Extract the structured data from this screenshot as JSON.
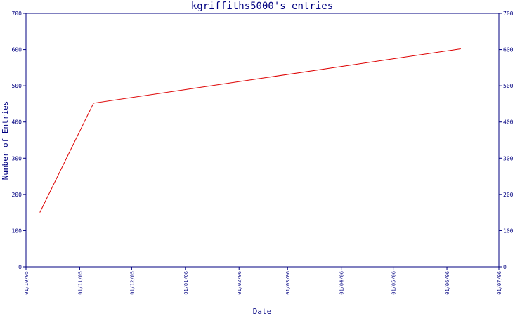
{
  "chart_data": {
    "type": "line",
    "title": "kgriffiths5000's entries",
    "xlabel": "Date",
    "ylabel": "Number of Entries",
    "ylim": [
      0,
      700
    ],
    "yticks": [
      0,
      100,
      200,
      300,
      400,
      500,
      600,
      700
    ],
    "xlim": [
      "2005-10-01",
      "2006-07-01"
    ],
    "xticks": [
      {
        "date": "2005-10-01",
        "label": "01/10/05"
      },
      {
        "date": "2005-11-01",
        "label": "01/11/05"
      },
      {
        "date": "2005-12-01",
        "label": "01/12/05"
      },
      {
        "date": "2006-01-01",
        "label": "01/01/06"
      },
      {
        "date": "2006-02-01",
        "label": "01/02/06"
      },
      {
        "date": "2006-03-01",
        "label": "01/03/06"
      },
      {
        "date": "2006-04-01",
        "label": "01/04/06"
      },
      {
        "date": "2006-05-01",
        "label": "01/05/06"
      },
      {
        "date": "2006-06-01",
        "label": "01/06/06"
      },
      {
        "date": "2006-07-01",
        "label": "01/07/06"
      }
    ],
    "right_axis": true,
    "grid": false,
    "series": [
      {
        "color": "#dd0000",
        "points": [
          {
            "x": "2005-10-09",
            "y": 150
          },
          {
            "x": "2005-11-09",
            "y": 452
          },
          {
            "x": "2006-06-09",
            "y": 602
          }
        ]
      }
    ],
    "colors": {
      "axis": "#000080",
      "text": "#000080",
      "line": "#dd0000",
      "background": "#ffffff"
    }
  }
}
